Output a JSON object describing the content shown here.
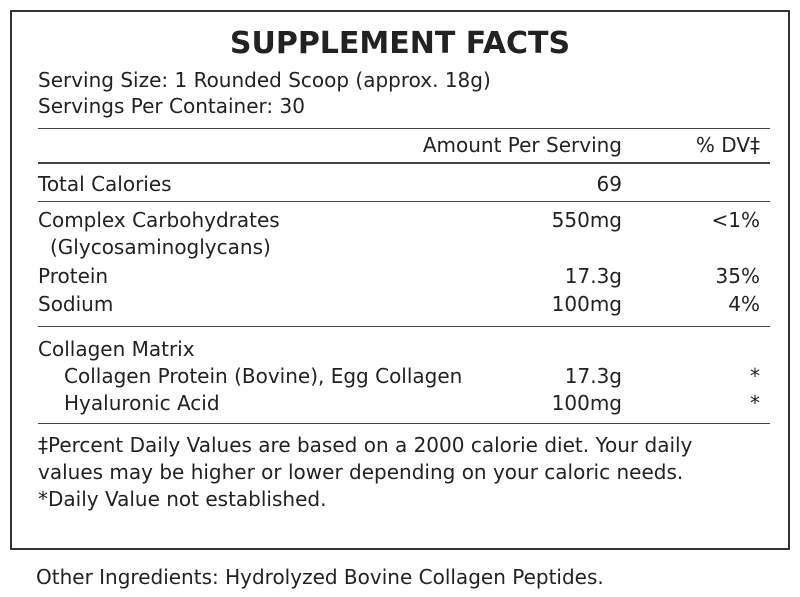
{
  "title": "SUPPLEMENT FACTS",
  "serving_size": "Serving Size: 1 Rounded Scoop (approx. 18g)",
  "servings_per_container": "Servings Per Container: 30",
  "table": {
    "header": {
      "amount": "Amount Per Serving",
      "dv": "% DV‡"
    },
    "rows": [
      {
        "name": "Total Calories",
        "amount": "69"
      },
      {
        "name": "Complex Carbohydrates",
        "note": "(Glycosaminoglycans)",
        "amount": "550mg",
        "dv": "<1%"
      },
      {
        "name": "Protein",
        "amount": "17.3g",
        "dv": "35%"
      },
      {
        "name": "Sodium",
        "amount": "100mg",
        "dv": "4%"
      }
    ],
    "group": {
      "name": "Collagen Matrix",
      "rows": [
        {
          "name": "Collagen Protein (Bovine), Egg Collagen",
          "amount": "17.3g",
          "dv": "*"
        },
        {
          "name": "Hyaluronic Acid",
          "amount": "100mg",
          "dv": "*"
        }
      ]
    }
  },
  "footnotes": [
    "‡Percent Daily Values are based on a 2000 calorie diet. Your daily values may be higher or lower depending on your caloric needs.",
    "*Daily Value not established."
  ],
  "other_ingredients": "Other Ingredients: Hydrolyzed Bovine Collagen Peptides."
}
